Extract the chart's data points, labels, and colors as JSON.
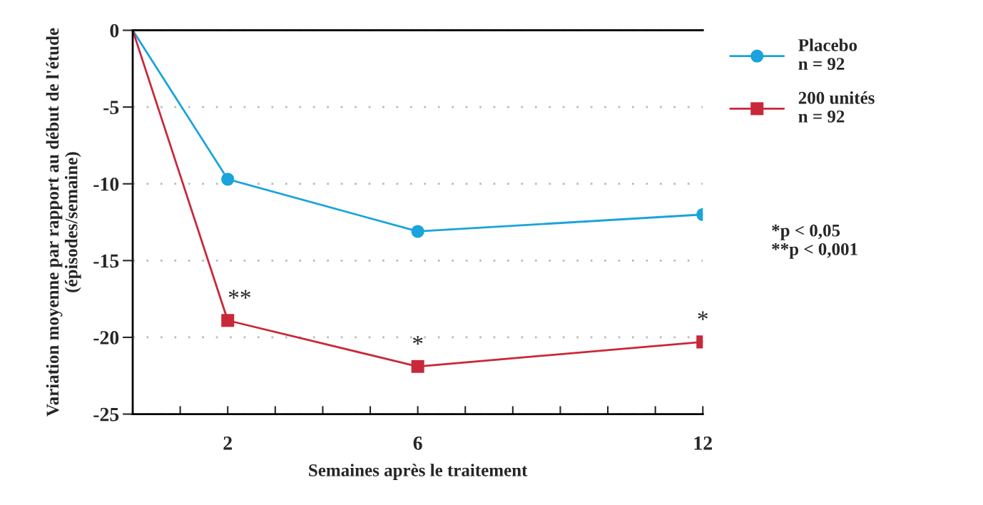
{
  "chart_data": {
    "type": "line",
    "xlabel": "Semaines après le traitement",
    "ylabel": "Variation moyenne par rapport au début de l'étude\n(épisodes/semaine)",
    "x": [
      0,
      2,
      6,
      12
    ],
    "series": [
      {
        "name": "Placebo\nn = 92",
        "color": "#1aa3dc",
        "marker": "circle",
        "values": [
          0,
          -9.7,
          -13.1,
          -12.0
        ]
      },
      {
        "name": "200 unités\nn = 92",
        "color": "#c8283a",
        "marker": "square",
        "values": [
          0,
          -18.9,
          -21.9,
          -20.3
        ]
      }
    ],
    "xlim": [
      0,
      12
    ],
    "xticks": [
      {
        "value": 0,
        "label": null
      },
      {
        "value": 1,
        "label": null
      },
      2,
      {
        "value": 3,
        "label": null
      },
      {
        "value": 4,
        "label": null
      },
      {
        "value": 5,
        "label": null
      },
      6,
      {
        "value": 7,
        "label": null
      },
      {
        "value": 8,
        "label": null
      },
      {
        "value": 9,
        "label": null
      },
      {
        "value": 10,
        "label": null
      },
      {
        "value": 11,
        "label": null
      },
      12
    ],
    "ylim": [
      -25,
      0
    ],
    "yticks": [
      0,
      -5,
      -10,
      -15,
      -20,
      -25
    ],
    "grid": "y",
    "legend": "top right",
    "line_style": "solid",
    "annotations": [
      {
        "text": "**",
        "x": 2,
        "y": -18.9
      },
      {
        "text": "*",
        "x": 6,
        "y": -21.9
      },
      {
        "text": "*",
        "x": 12,
        "y": -20.3
      },
      "*p < 0,05\n**p < 0,001"
    ]
  }
}
